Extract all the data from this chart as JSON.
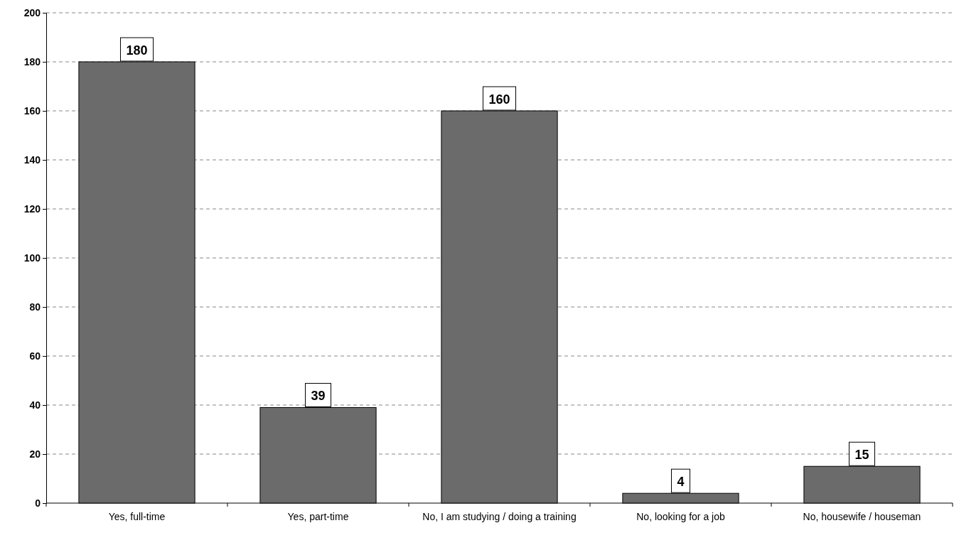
{
  "chart_data": {
    "type": "bar",
    "categories": [
      "Yes, full-time",
      "Yes, part-time",
      "No, I am studying / doing a training",
      "No, looking for a job",
      "No, housewife / houseman"
    ],
    "values": [
      180,
      39,
      160,
      4,
      15
    ],
    "color": "#6b6b6b",
    "ylim": [
      0,
      200
    ],
    "yticks": [
      0,
      20,
      40,
      60,
      80,
      100,
      120,
      140,
      160,
      180,
      200
    ],
    "grid": "y",
    "data_labels": true
  }
}
